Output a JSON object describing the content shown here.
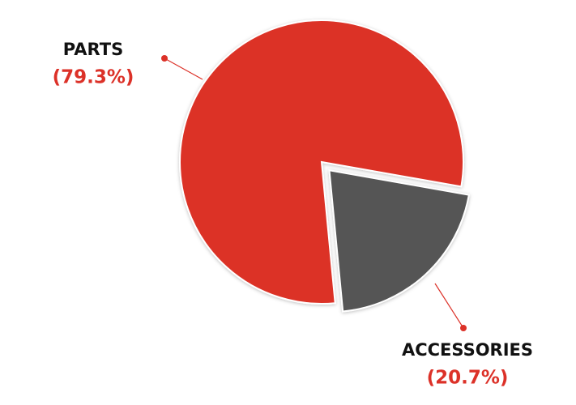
{
  "chart_data": {
    "type": "pie",
    "categories": [
      "PARTS",
      "ACCESSORIES"
    ],
    "values": [
      79.3,
      20.7
    ],
    "value_labels": [
      "(79.3%)",
      "(20.7%)"
    ],
    "colors": [
      "#dc3128",
      "#555555"
    ]
  }
}
